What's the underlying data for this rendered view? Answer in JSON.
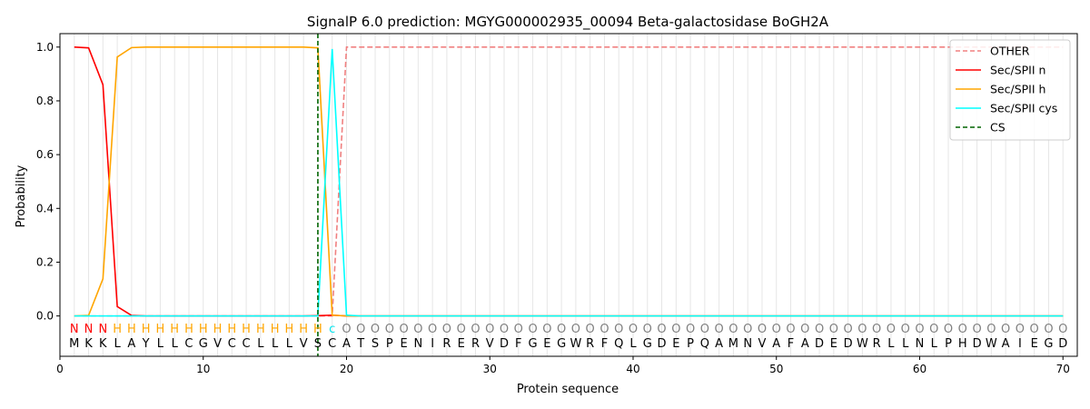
{
  "chart_data": {
    "type": "line",
    "title": "SignalP 6.0 prediction: MGYG000002935_00094 Beta-galactosidase BoGH2A",
    "xlabel": "Protein sequence",
    "ylabel": "Probability",
    "xlim": [
      0,
      71
    ],
    "ylim": [
      -0.15,
      1.05
    ],
    "xticks": [
      0,
      10,
      20,
      30,
      40,
      50,
      60,
      70
    ],
    "yticks": [
      0.0,
      0.2,
      0.4,
      0.6,
      0.8,
      1.0
    ],
    "grid": "vertical lines at each residue",
    "legend_position": "top-right",
    "sequence": [
      "M",
      "K",
      "K",
      "L",
      "A",
      "Y",
      "L",
      "L",
      "C",
      "G",
      "V",
      "C",
      "C",
      "L",
      "L",
      "L",
      "V",
      "S",
      "C",
      "A",
      "T",
      "S",
      "P",
      "E",
      "N",
      "I",
      "R",
      "E",
      "R",
      "V",
      "D",
      "F",
      "G",
      "E",
      "G",
      "W",
      "R",
      "F",
      "Q",
      "L",
      "G",
      "D",
      "E",
      "P",
      "Q",
      "A",
      "M",
      "N",
      "V",
      "A",
      "F",
      "A",
      "D",
      "E",
      "D",
      "W",
      "R",
      "L",
      "L",
      "N",
      "L",
      "P",
      "H",
      "D",
      "W",
      "A",
      "I",
      "E",
      "G",
      "D"
    ],
    "labels": [
      "N",
      "N",
      "N",
      "H",
      "H",
      "H",
      "H",
      "H",
      "H",
      "H",
      "H",
      "H",
      "H",
      "H",
      "H",
      "H",
      "H",
      "H",
      "c",
      "O",
      "O",
      "O",
      "O",
      "O",
      "O",
      "O",
      "O",
      "O",
      "O",
      "O",
      "O",
      "O",
      "O",
      "O",
      "O",
      "O",
      "O",
      "O",
      "O",
      "O",
      "O",
      "O",
      "O",
      "O",
      "O",
      "O",
      "O",
      "O",
      "O",
      "O",
      "O",
      "O",
      "O",
      "O",
      "O",
      "O",
      "O",
      "O",
      "O",
      "O",
      "O",
      "O",
      "O",
      "O",
      "O",
      "O",
      "O",
      "O",
      "O",
      "O"
    ],
    "label_colors": {
      "N": "#ff0000",
      "H": "#ffa500",
      "c": "#00e5ee",
      "O": "#808080"
    },
    "cs_position": 18,
    "series": [
      {
        "name": "OTHER",
        "color": "#f08080",
        "style": "dashed",
        "values": [
          0,
          0,
          0,
          0,
          0,
          0,
          0,
          0,
          0,
          0,
          0,
          0,
          0,
          0,
          0,
          0,
          0,
          0,
          0,
          1,
          1,
          1,
          1,
          1,
          1,
          1,
          1,
          1,
          1,
          1,
          1,
          1,
          1,
          1,
          1,
          1,
          1,
          1,
          1,
          1,
          1,
          1,
          1,
          1,
          1,
          1,
          1,
          1,
          1,
          1,
          1,
          1,
          1,
          1,
          1,
          1,
          1,
          1,
          1,
          1,
          1,
          1,
          1,
          1,
          1,
          1,
          1,
          1,
          1,
          1
        ]
      },
      {
        "name": "Sec/SPII n",
        "color": "#ff0000",
        "style": "solid",
        "values": [
          1.0,
          0.997,
          0.86,
          0.035,
          0.002,
          0,
          0,
          0,
          0,
          0,
          0,
          0,
          0,
          0,
          0,
          0,
          0,
          0.001,
          0.003,
          0,
          0,
          0,
          0,
          0,
          0,
          0,
          0,
          0,
          0,
          0,
          0,
          0,
          0,
          0,
          0,
          0,
          0,
          0,
          0,
          0,
          0,
          0,
          0,
          0,
          0,
          0,
          0,
          0,
          0,
          0,
          0,
          0,
          0,
          0,
          0,
          0,
          0,
          0,
          0,
          0,
          0,
          0,
          0,
          0,
          0,
          0,
          0,
          0,
          0,
          0
        ]
      },
      {
        "name": "Sec/SPII h",
        "color": "#ffa500",
        "style": "solid",
        "values": [
          0,
          0.002,
          0.138,
          0.963,
          0.998,
          1.0,
          1.0,
          1.0,
          1.0,
          1.0,
          1.0,
          1.0,
          1.0,
          1.0,
          1.0,
          1.0,
          1.0,
          0.997,
          0.003,
          0,
          0,
          0,
          0,
          0,
          0,
          0,
          0,
          0,
          0,
          0,
          0,
          0,
          0,
          0,
          0,
          0,
          0,
          0,
          0,
          0,
          0,
          0,
          0,
          0,
          0,
          0,
          0,
          0,
          0,
          0,
          0,
          0,
          0,
          0,
          0,
          0,
          0,
          0,
          0,
          0,
          0,
          0,
          0,
          0,
          0,
          0,
          0,
          0,
          0,
          0
        ]
      },
      {
        "name": "Sec/SPII cys",
        "color": "#00ffff",
        "style": "solid",
        "values": [
          0,
          0,
          0,
          0,
          0,
          0,
          0,
          0,
          0,
          0,
          0,
          0,
          0,
          0,
          0,
          0,
          0,
          0,
          0.993,
          0.003,
          0,
          0,
          0,
          0,
          0,
          0,
          0,
          0,
          0,
          0,
          0,
          0,
          0,
          0,
          0,
          0,
          0,
          0,
          0,
          0,
          0,
          0,
          0,
          0,
          0,
          0,
          0,
          0,
          0,
          0,
          0,
          0,
          0,
          0,
          0,
          0,
          0,
          0,
          0,
          0,
          0,
          0,
          0,
          0,
          0,
          0,
          0,
          0,
          0,
          0
        ]
      },
      {
        "name": "CS",
        "color": "#006400",
        "style": "dashed-vertical"
      }
    ]
  }
}
